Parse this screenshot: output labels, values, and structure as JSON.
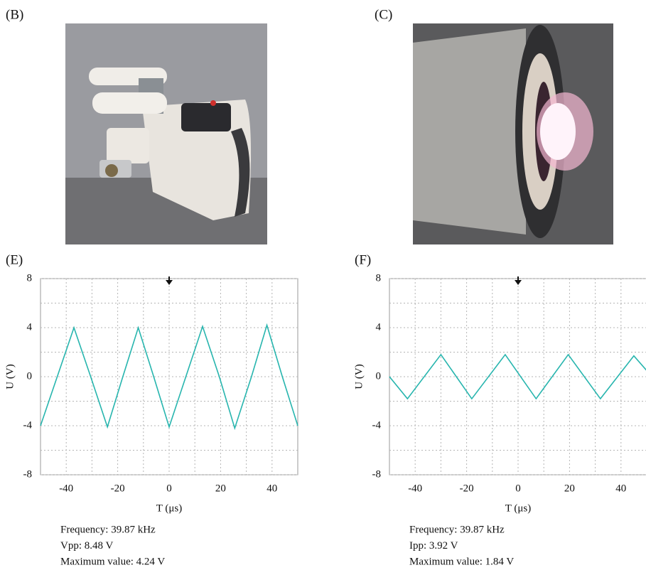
{
  "photos": [
    {
      "label": "(B)"
    },
    {
      "label": "(C)"
    }
  ],
  "chart_data": [
    {
      "type": "line",
      "panel_label": "(E)",
      "xlabel": "T (μs)",
      "ylabel": "U (V)",
      "x": [
        -50,
        -43.5,
        -37,
        -30.5,
        -24,
        -18,
        -12,
        -6,
        0,
        6.5,
        13,
        19.5,
        25.5,
        32,
        38,
        44,
        50
      ],
      "series": [
        {
          "color": "#27b5ae",
          "values": [
            -4,
            0,
            4,
            0,
            -4.1,
            0,
            4,
            0,
            -4.1,
            0,
            4.1,
            0,
            -4.2,
            0,
            4.2,
            0,
            -4
          ]
        }
      ],
      "xlim": [
        -50,
        50
      ],
      "xticks": [
        -40,
        -20,
        0,
        20,
        40
      ],
      "ylim": [
        -8,
        8
      ],
      "yticks": [
        -8,
        -4,
        0,
        4,
        8
      ],
      "grid": true,
      "annotations": [
        "Frequency: 39.87 kHz",
        "Vpp: 8.48 V",
        "Maximum value: 4.24 V"
      ]
    },
    {
      "type": "line",
      "panel_label": "(F)",
      "xlabel": "T (μs)",
      "ylabel": "U (V)",
      "x": [
        -50,
        -43,
        -30,
        -18,
        -5,
        7,
        19.5,
        32,
        45,
        50
      ],
      "series": [
        {
          "color": "#27b5ae",
          "values": [
            0,
            -1.8,
            1.8,
            -1.8,
            1.8,
            -1.8,
            1.8,
            -1.8,
            1.7,
            0.5
          ]
        }
      ],
      "xlim": [
        -50,
        50
      ],
      "xticks": [
        -40,
        -20,
        0,
        20,
        40
      ],
      "ylim": [
        -8,
        8
      ],
      "yticks": [
        -8,
        -4,
        0,
        4,
        8
      ],
      "grid": true,
      "annotations": [
        "Frequency: 39.87 kHz",
        "Ipp: 3.92 V",
        "Maximum value: 1.84 V"
      ]
    }
  ]
}
